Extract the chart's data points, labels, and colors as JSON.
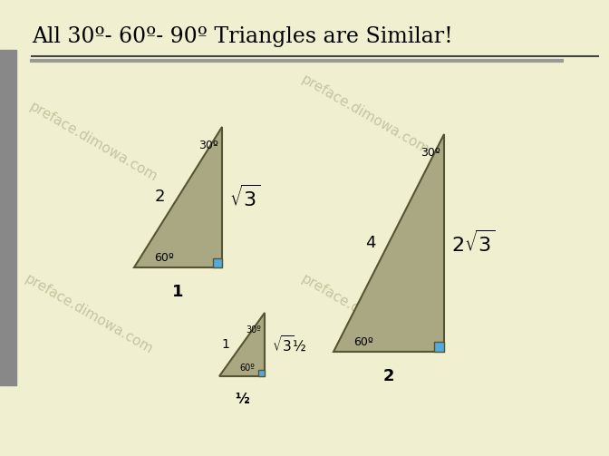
{
  "title": "All 30º- 60º- 90º Triangles are Similar!",
  "bg_color": "#f0f0d0",
  "left_bar_color": "#888888",
  "triangle_fill": "#aaa882",
  "triangle_edge": "#555533",
  "right_angle_color": "#55aadd",
  "watermark_color": "#c0c09a",
  "watermark_text": "preface.dimowa.com",
  "title_fontsize": 17,
  "tri1": {
    "label_hyp": "2",
    "label_base": "1",
    "label_vert": "$\\sqrt{3}$",
    "angle_top": "30º",
    "angle_bot": "60º"
  },
  "tri2": {
    "label_hyp": "4",
    "label_base": "2",
    "label_vert": "$2\\sqrt{3}$",
    "angle_top": "30º",
    "angle_bot": "60º"
  },
  "tri3": {
    "label_hyp": "1",
    "label_base": "½",
    "label_vert": "$\\sqrt{3}$½",
    "angle_top": "30º",
    "angle_bot": "60º"
  }
}
